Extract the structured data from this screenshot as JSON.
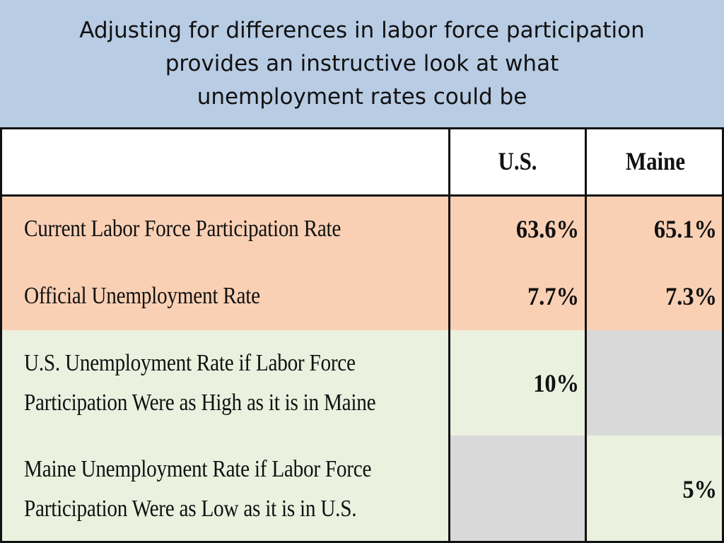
{
  "slide": {
    "title_lines": [
      "Adjusting for differences in labor force participation",
      "provides an instructive look at what",
      "unemployment rates could be"
    ]
  },
  "table": {
    "headers": [
      "",
      "U.S.",
      "Maine"
    ],
    "rows": [
      {
        "label_lines": [
          "Current Labor Force Participation Rate"
        ],
        "us": "63.6%",
        "maine": "65.1%"
      },
      {
        "label_lines": [
          "Official Unemployment Rate"
        ],
        "us": "7.7%",
        "maine": "7.3%"
      },
      {
        "label_lines": [
          "U.S. Unemployment Rate if Labor Force",
          "Participation Were as High as it is in Maine"
        ],
        "us": "10%",
        "maine": ""
      },
      {
        "label_lines": [
          "Maine Unemployment Rate if Labor Force",
          "Participation Were as Low as it is in U.S."
        ],
        "us": "",
        "maine": "5%"
      }
    ]
  },
  "colors": {
    "title_band": "#b8cce4",
    "top_rows": "#fad0b4",
    "bottom_rows": "#ebf1df",
    "empty_cell": "#d9d9d9"
  }
}
